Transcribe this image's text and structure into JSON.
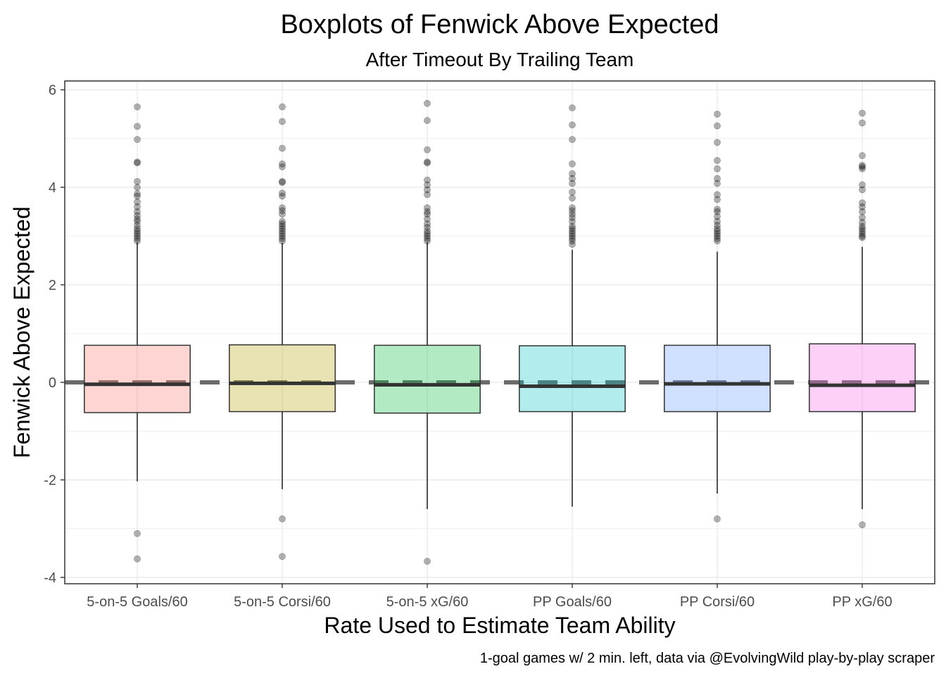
{
  "chart_data": {
    "type": "boxplot",
    "title": "Boxplots of Fenwick Above Expected",
    "subtitle": "After Timeout By Trailing Team",
    "xlabel": "Rate Used to Estimate Team Ability",
    "ylabel": "Fenwick Above Expected",
    "caption": "1-goal games w/ 2 min. left, data via @EvolvingWild play-by-play scraper",
    "ylim": [
      -4.05,
      6.2
    ],
    "yticks": [
      -4,
      -2,
      0,
      2,
      4,
      6
    ],
    "ytick_labels": [
      "-4",
      "-2",
      "0",
      "2",
      "4",
      "6"
    ],
    "reference_line": 0,
    "grid": true,
    "categories": [
      "5-on-5 Goals/60",
      "5-on-5 Corsi/60",
      "5-on-5 xG/60",
      "PP Goals/60",
      "PP Corsi/60",
      "PP xG/60"
    ],
    "boxes": [
      {
        "category": "5-on-5 Goals/60",
        "color": "#f8766d",
        "q1": -0.62,
        "median": -0.04,
        "q3": 0.76,
        "whisker_low": -2.03,
        "whisker_high": 2.87,
        "outliers": [
          5.65,
          5.25,
          4.98,
          4.52,
          4.5,
          4.12,
          4.0,
          3.87,
          3.82,
          3.7,
          3.6,
          3.5,
          3.42,
          3.35,
          3.3,
          3.22,
          3.15,
          3.1,
          3.05,
          3.0,
          2.95,
          2.9,
          -3.1,
          -3.62
        ]
      },
      {
        "category": "5-on-5 Corsi/60",
        "color": "#b79f00",
        "q1": -0.6,
        "median": -0.02,
        "q3": 0.77,
        "whisker_low": -2.19,
        "whisker_high": 2.86,
        "outliers": [
          5.65,
          5.35,
          4.8,
          4.48,
          4.42,
          4.12,
          4.1,
          3.88,
          3.82,
          3.58,
          3.52,
          3.45,
          3.3,
          3.25,
          3.2,
          3.15,
          3.1,
          3.05,
          3.0,
          2.95,
          2.9,
          -2.8,
          -3.57
        ]
      },
      {
        "category": "5-on-5 xG/60",
        "color": "#00ba38",
        "q1": -0.63,
        "median": -0.05,
        "q3": 0.76,
        "whisker_low": -2.6,
        "whisker_high": 2.87,
        "outliers": [
          5.72,
          5.37,
          4.77,
          4.52,
          4.5,
          4.15,
          4.05,
          3.95,
          3.85,
          3.58,
          3.5,
          3.45,
          3.35,
          3.25,
          3.18,
          3.1,
          3.05,
          3.0,
          2.95,
          2.9,
          -3.67
        ]
      },
      {
        "category": "PP Goals/60",
        "color": "#00bfc4",
        "q1": -0.6,
        "median": -0.08,
        "q3": 0.75,
        "whisker_low": -2.55,
        "whisker_high": 2.72,
        "outliers": [
          5.63,
          5.28,
          4.98,
          4.48,
          4.28,
          4.18,
          4.08,
          3.9,
          3.78,
          3.58,
          3.52,
          3.45,
          3.38,
          3.3,
          3.2,
          3.15,
          3.1,
          3.05,
          3.0,
          2.95,
          2.9,
          2.83
        ]
      },
      {
        "category": "PP Corsi/60",
        "color": "#619cff",
        "q1": -0.6,
        "median": -0.03,
        "q3": 0.76,
        "whisker_low": -2.28,
        "whisker_high": 2.68,
        "outliers": [
          5.5,
          5.26,
          4.92,
          4.55,
          4.38,
          4.18,
          4.08,
          3.85,
          3.75,
          3.55,
          3.5,
          3.4,
          3.3,
          3.22,
          3.15,
          3.1,
          3.05,
          3.0,
          2.95,
          2.9,
          -2.8
        ]
      },
      {
        "category": "PP xG/60",
        "color": "#f564e3",
        "q1": -0.6,
        "median": -0.06,
        "q3": 0.79,
        "whisker_low": -2.6,
        "whisker_high": 2.78,
        "outliers": [
          5.52,
          5.32,
          4.65,
          4.45,
          4.42,
          4.38,
          4.05,
          3.95,
          3.68,
          3.6,
          3.5,
          3.38,
          3.28,
          3.2,
          3.15,
          3.1,
          3.05,
          3.0,
          2.97,
          -2.92
        ]
      }
    ]
  }
}
